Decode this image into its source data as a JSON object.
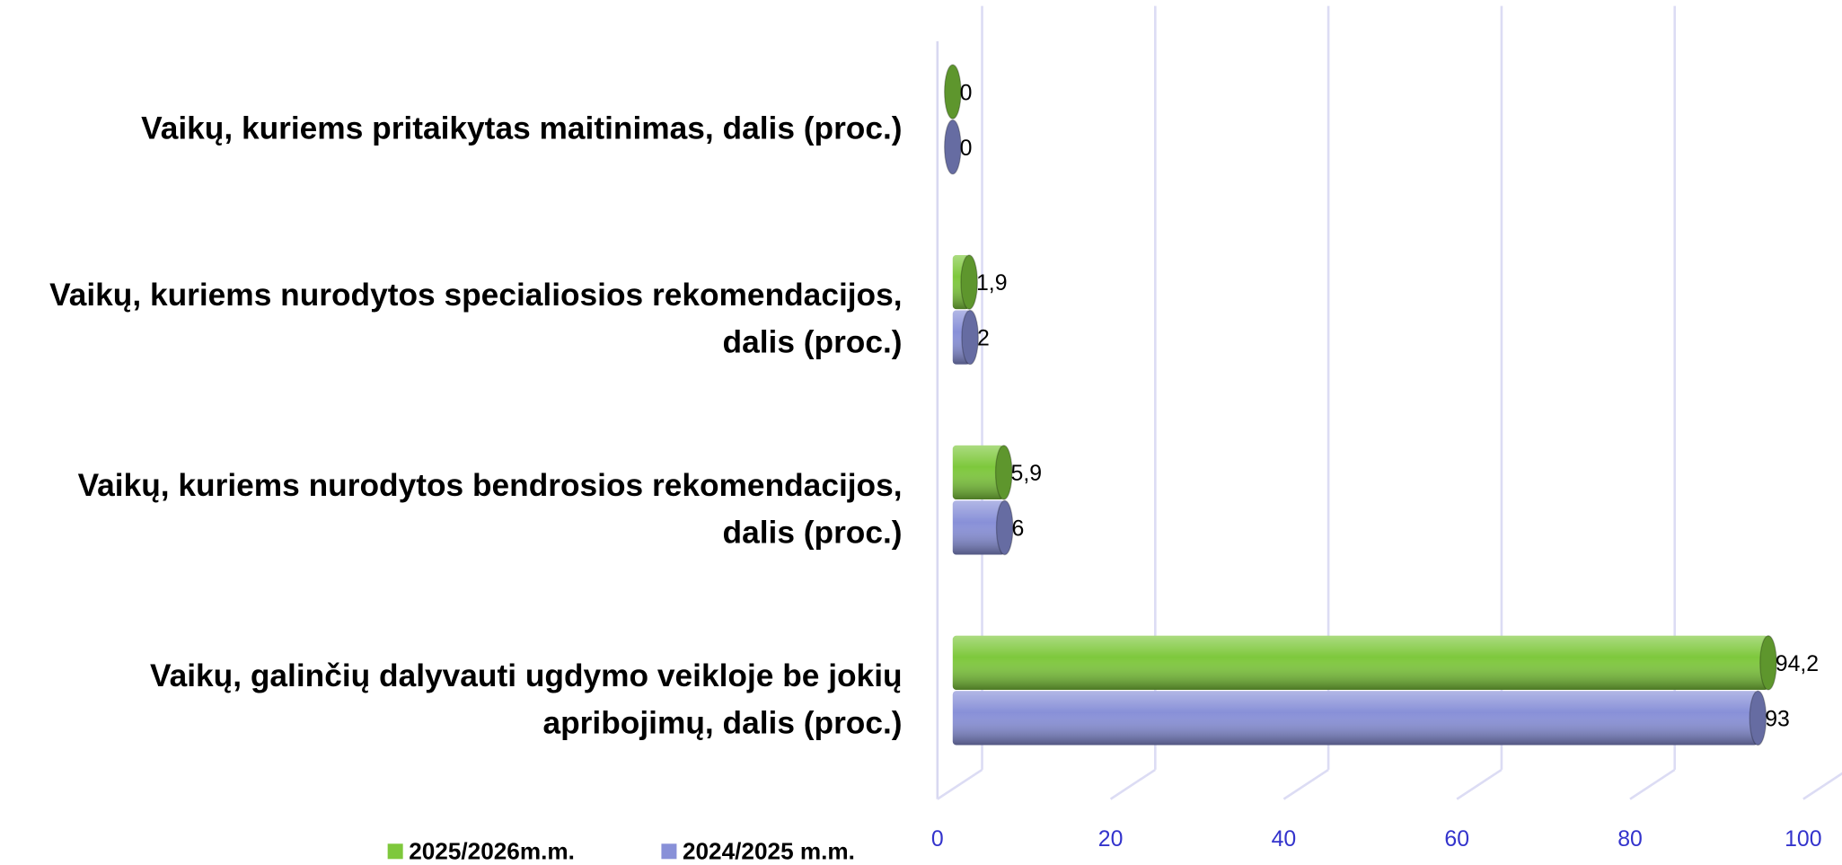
{
  "chart_data": {
    "type": "bar",
    "orientation": "horizontal",
    "style": "3d-cylinder",
    "categories": [
      "Vaikų, kuriems pritaikytas maitinimas, dalis (proc.)",
      "Vaikų, kuriems nurodytos specialiosios rekomendacijos, dalis (proc.)",
      "Vaikų, kuriems nurodytos bendrosios rekomendacijos, dalis (proc.)",
      "Vaikų, galinčių dalyvauti ugdymo veikloje be jokių apribojimų, dalis (proc.)"
    ],
    "series": [
      {
        "name": "2025/2026m.m.",
        "color": "#7ec83c",
        "values": [
          0,
          1.9,
          5.9,
          94.2
        ],
        "value_labels": [
          "0",
          "1,9",
          "5,9",
          "94,2"
        ]
      },
      {
        "name": "2024/2025 m.m.",
        "color": "#8890d8",
        "values": [
          0,
          2,
          6,
          93
        ]
      }
    ],
    "xlim": [
      0,
      100
    ],
    "xticks": [
      0,
      20,
      40,
      60,
      80,
      100
    ],
    "grid": true,
    "legend": "bottom"
  }
}
